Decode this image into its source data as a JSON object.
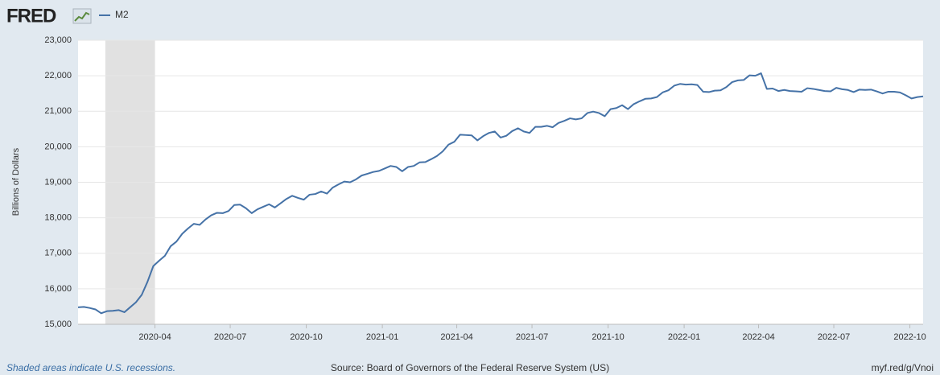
{
  "chart_data": {
    "type": "line",
    "logo": "FRED",
    "ylabel": "Billions of Dollars",
    "note": "Shaded areas indicate U.S. recessions.",
    "source": "Source: Board of Governors of the Federal Reserve System (US)",
    "link": "myf.red/g/Vnoi",
    "grid": true,
    "recessions": [
      {
        "start": "2020-02-01",
        "end": "2020-04-01"
      }
    ],
    "xlim": [
      "2019-12-30",
      "2022-10-17"
    ],
    "xticks": [
      {
        "value": "2020-04-01",
        "label": "2020-04"
      },
      {
        "value": "2020-07-01",
        "label": "2020-07"
      },
      {
        "value": "2020-10-01",
        "label": "2020-10"
      },
      {
        "value": "2021-01-01",
        "label": "2021-01"
      },
      {
        "value": "2021-04-01",
        "label": "2021-04"
      },
      {
        "value": "2021-07-01",
        "label": "2021-07"
      },
      {
        "value": "2021-10-01",
        "label": "2021-10"
      },
      {
        "value": "2022-01-01",
        "label": "2022-01"
      },
      {
        "value": "2022-04-01",
        "label": "2022-04"
      },
      {
        "value": "2022-07-01",
        "label": "2022-07"
      },
      {
        "value": "2022-10-01",
        "label": "2022-10"
      }
    ],
    "ylim": [
      15000,
      23000
    ],
    "yticks": [
      {
        "value": 15000,
        "label": "15,000"
      },
      {
        "value": 16000,
        "label": "16,000"
      },
      {
        "value": 17000,
        "label": "17,000"
      },
      {
        "value": 18000,
        "label": "18,000"
      },
      {
        "value": 19000,
        "label": "19,000"
      },
      {
        "value": 20000,
        "label": "20,000"
      },
      {
        "value": 21000,
        "label": "21,000"
      },
      {
        "value": 22000,
        "label": "22,000"
      },
      {
        "value": 23000,
        "label": "23,000"
      }
    ],
    "x": [
      "2019-12-30",
      "2020-01-06",
      "2020-01-13",
      "2020-01-20",
      "2020-01-27",
      "2020-02-03",
      "2020-02-10",
      "2020-02-17",
      "2020-02-24",
      "2020-03-02",
      "2020-03-09",
      "2020-03-16",
      "2020-03-23",
      "2020-03-30",
      "2020-04-06",
      "2020-04-13",
      "2020-04-20",
      "2020-04-27",
      "2020-05-04",
      "2020-05-11",
      "2020-05-18",
      "2020-05-25",
      "2020-06-01",
      "2020-06-08",
      "2020-06-15",
      "2020-06-22",
      "2020-06-29",
      "2020-07-06",
      "2020-07-13",
      "2020-07-20",
      "2020-07-27",
      "2020-08-03",
      "2020-08-10",
      "2020-08-17",
      "2020-08-24",
      "2020-08-31",
      "2020-09-07",
      "2020-09-14",
      "2020-09-21",
      "2020-09-28",
      "2020-10-05",
      "2020-10-12",
      "2020-10-19",
      "2020-10-26",
      "2020-11-02",
      "2020-11-09",
      "2020-11-16",
      "2020-11-23",
      "2020-11-30",
      "2020-12-07",
      "2020-12-14",
      "2020-12-21",
      "2020-12-28",
      "2021-01-04",
      "2021-01-11",
      "2021-01-18",
      "2021-01-25",
      "2021-02-01",
      "2021-02-08",
      "2021-02-15",
      "2021-02-22",
      "2021-03-01",
      "2021-03-08",
      "2021-03-15",
      "2021-03-22",
      "2021-03-29",
      "2021-04-05",
      "2021-04-12",
      "2021-04-19",
      "2021-04-26",
      "2021-05-03",
      "2021-05-10",
      "2021-05-17",
      "2021-05-24",
      "2021-05-31",
      "2021-06-07",
      "2021-06-14",
      "2021-06-21",
      "2021-06-28",
      "2021-07-05",
      "2021-07-12",
      "2021-07-19",
      "2021-07-26",
      "2021-08-02",
      "2021-08-09",
      "2021-08-16",
      "2021-08-23",
      "2021-08-30",
      "2021-09-06",
      "2021-09-13",
      "2021-09-20",
      "2021-09-27",
      "2021-10-04",
      "2021-10-11",
      "2021-10-18",
      "2021-10-25",
      "2021-11-01",
      "2021-11-08",
      "2021-11-15",
      "2021-11-22",
      "2021-11-29",
      "2021-12-06",
      "2021-12-13",
      "2021-12-20",
      "2021-12-27",
      "2022-01-03",
      "2022-01-10",
      "2022-01-17",
      "2022-01-24",
      "2022-01-31",
      "2022-02-07",
      "2022-02-14",
      "2022-02-21",
      "2022-02-28",
      "2022-03-07",
      "2022-03-14",
      "2022-03-21",
      "2022-03-28",
      "2022-04-04",
      "2022-04-11",
      "2022-04-18",
      "2022-04-25",
      "2022-05-02",
      "2022-05-09",
      "2022-05-16",
      "2022-05-23",
      "2022-05-30",
      "2022-06-06",
      "2022-06-13",
      "2022-06-20",
      "2022-06-27",
      "2022-07-04",
      "2022-07-11",
      "2022-07-18",
      "2022-07-25",
      "2022-08-01",
      "2022-08-08",
      "2022-08-15",
      "2022-08-22",
      "2022-08-29",
      "2022-09-05",
      "2022-09-12",
      "2022-09-19",
      "2022-09-26",
      "2022-10-03",
      "2022-10-10",
      "2022-10-17"
    ],
    "series": [
      {
        "name": "M2",
        "color": "#4572a7",
        "values": [
          15480,
          15490,
          15460,
          15420,
          15310,
          15370,
          15380,
          15400,
          15340,
          15480,
          15620,
          15830,
          16200,
          16640,
          16790,
          16930,
          17200,
          17330,
          17550,
          17700,
          17830,
          17800,
          17950,
          18070,
          18140,
          18130,
          18190,
          18360,
          18370,
          18270,
          18130,
          18240,
          18310,
          18380,
          18290,
          18410,
          18530,
          18620,
          18560,
          18510,
          18650,
          18670,
          18740,
          18680,
          18850,
          18940,
          19020,
          19000,
          19080,
          19190,
          19240,
          19290,
          19320,
          19390,
          19460,
          19430,
          19310,
          19430,
          19460,
          19560,
          19570,
          19650,
          19740,
          19870,
          20060,
          20140,
          20340,
          20330,
          20320,
          20180,
          20300,
          20390,
          20430,
          20260,
          20310,
          20440,
          20520,
          20430,
          20390,
          20560,
          20560,
          20590,
          20550,
          20670,
          20730,
          20800,
          20770,
          20800,
          20950,
          20990,
          20950,
          20860,
          21060,
          21090,
          21170,
          21060,
          21200,
          21280,
          21350,
          21360,
          21400,
          21530,
          21590,
          21720,
          21770,
          21750,
          21760,
          21740,
          21550,
          21540,
          21580,
          21590,
          21680,
          21820,
          21870,
          21880,
          22010,
          22000,
          22070,
          21630,
          21640,
          21570,
          21600,
          21570,
          21560,
          21550,
          21650,
          21630,
          21600,
          21570,
          21560,
          21660,
          21620,
          21600,
          21540,
          21610,
          21600,
          21610,
          21560,
          21500,
          21550,
          21550,
          21530,
          21450,
          21360,
          21400,
          21420
        ]
      }
    ]
  }
}
